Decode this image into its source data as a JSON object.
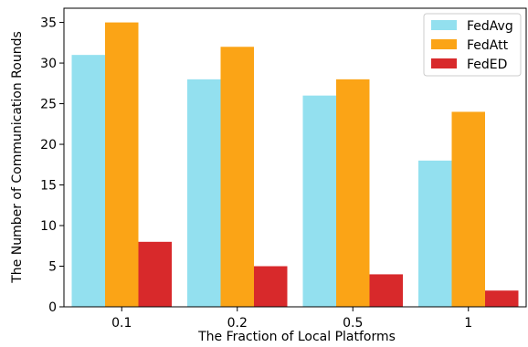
{
  "chart_data": {
    "type": "bar",
    "categories": [
      "0.1",
      "0.2",
      "0.5",
      "1"
    ],
    "series": [
      {
        "name": "FedAvg",
        "values": [
          31,
          28,
          26,
          18
        ],
        "color": "#93e0ef"
      },
      {
        "name": "FedAtt",
        "values": [
          35,
          32,
          28,
          24
        ],
        "color": "#fba416"
      },
      {
        "name": "FedED",
        "values": [
          8,
          5,
          4,
          2
        ],
        "color": "#d8292b"
      }
    ],
    "title": "",
    "xlabel": "The Fraction of Local Platforms",
    "ylabel": "The Number of Communication Rounds",
    "ylim": [
      0,
      36.75
    ],
    "yticks": [
      0,
      5,
      10,
      15,
      20,
      25,
      30,
      35
    ],
    "grid": false,
    "legend_position": "top-right"
  }
}
